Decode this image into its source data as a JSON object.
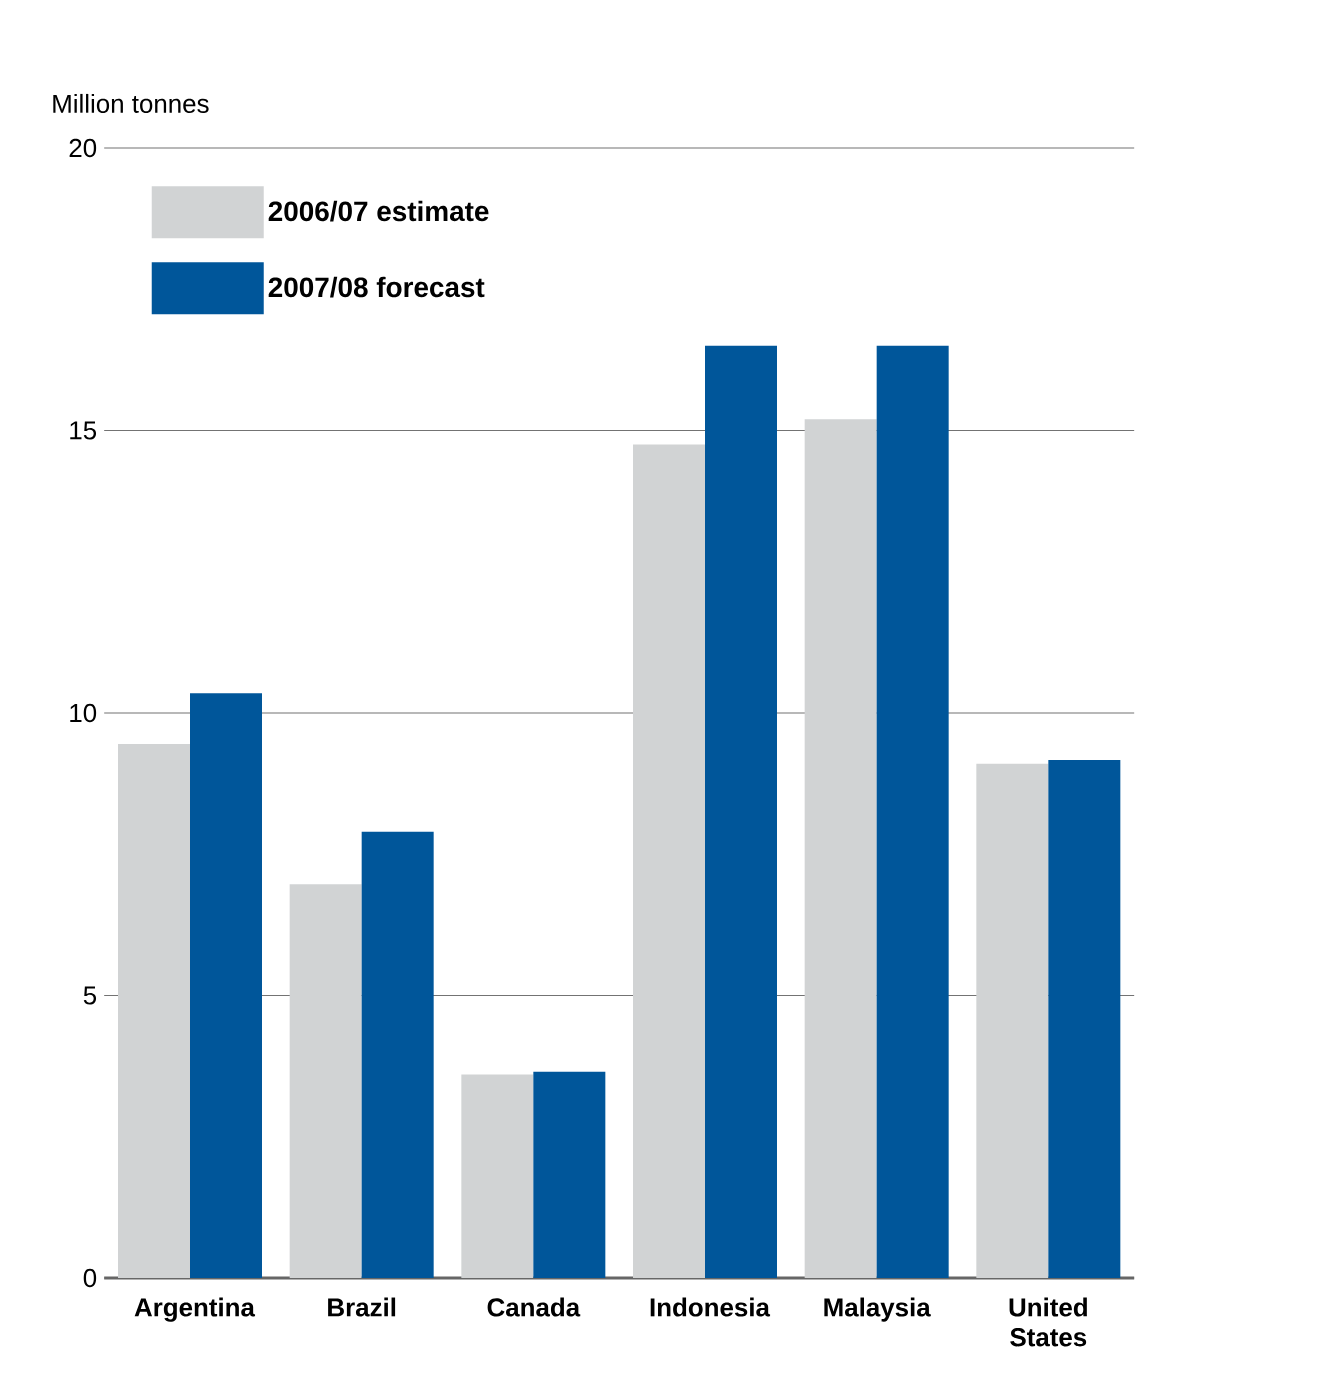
{
  "chart_data": {
    "type": "bar",
    "ylabel": "Million tonnes",
    "categories": [
      "Argentina",
      "Brazil",
      "Canada",
      "Indonesia",
      "Malaysia",
      "United States"
    ],
    "series": [
      {
        "name": "2006/07 estimate",
        "color": "#d1d3d4",
        "values": [
          9.45,
          6.97,
          3.6,
          14.75,
          15.2,
          9.1
        ]
      },
      {
        "name": "2007/08 forecast",
        "color": "#00569a",
        "values": [
          10.35,
          7.9,
          3.65,
          16.5,
          16.5,
          9.17
        ]
      }
    ],
    "ylim": [
      0,
      20
    ],
    "yticks": [
      0,
      5,
      10,
      15,
      20
    ],
    "grid": "y",
    "legend": "top left"
  }
}
